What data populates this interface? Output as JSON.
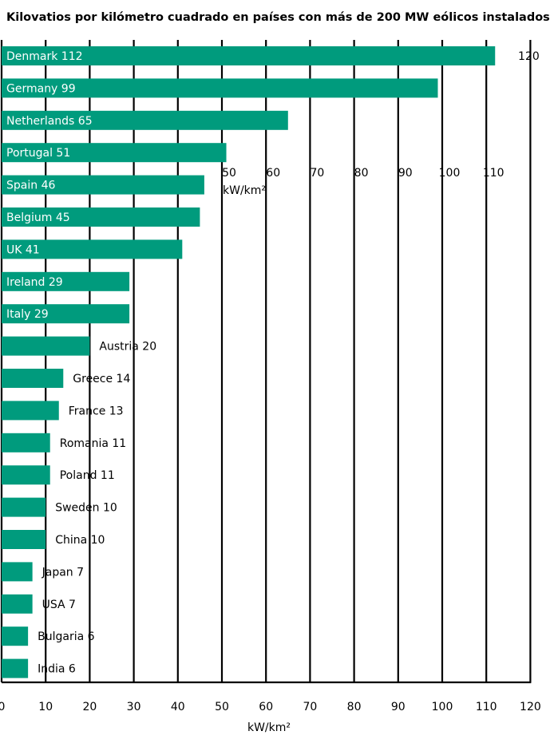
{
  "chart_data": {
    "type": "bar",
    "orientation": "horizontal",
    "title": "Kilovatios por kilómetro cuadrado en países con más de 200 MW eólicos instalados",
    "categories": [
      "Denmark",
      "Germany",
      "Netherlands",
      "Portugal",
      "Spain",
      "Belgium",
      "UK",
      "Ireland",
      "Italy",
      "Austria",
      "Greece",
      "France",
      "Romania",
      "Poland",
      "Sweden",
      "China",
      "Japan",
      "USA",
      "Bulgaria",
      "India"
    ],
    "values": [
      112,
      99,
      65,
      51,
      46,
      45,
      41,
      29,
      29,
      20,
      14,
      13,
      11,
      11,
      10,
      10,
      7,
      7,
      6,
      6
    ],
    "xlabel": "kW/km²",
    "xlim": [
      0,
      120
    ],
    "xticks": [
      0,
      10,
      20,
      30,
      40,
      50,
      60,
      70,
      80,
      90,
      100,
      110,
      120
    ],
    "inner_axis_ticks": [
      50,
      60,
      70,
      80,
      90,
      100,
      110
    ],
    "inner_axis_label": "kW/km²",
    "top_tick_label": "120",
    "grid": true,
    "colors": {
      "bar": "#009b7d",
      "grid": "#000000",
      "text": "#000000",
      "label_inside": "#ffffff"
    }
  }
}
